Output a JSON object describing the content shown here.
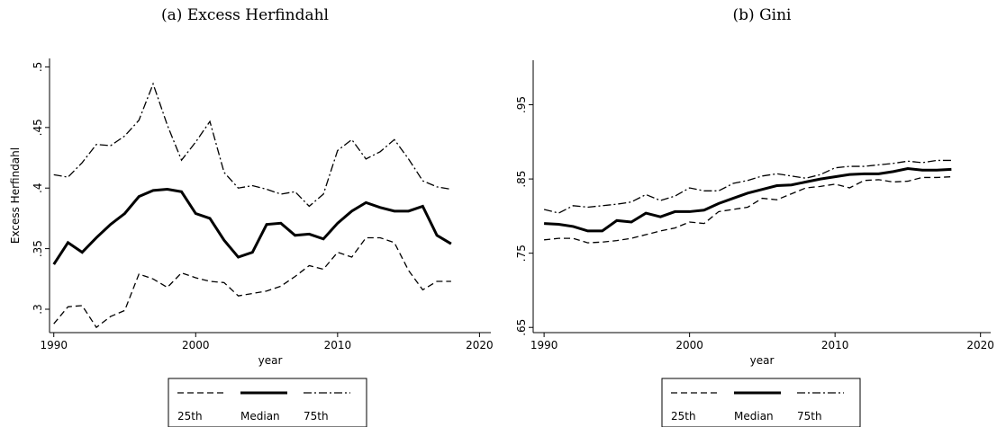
{
  "chart_data": [
    {
      "type": "line",
      "title": "(a) Excess Herfindahl",
      "x_label": "year",
      "y_label": "Excess Herfindahl",
      "x": [
        1990,
        1991,
        1992,
        1993,
        1994,
        1995,
        1996,
        1997,
        1998,
        1999,
        2000,
        2001,
        2002,
        2003,
        2004,
        2005,
        2006,
        2007,
        2008,
        2009,
        2010,
        2011,
        2012,
        2013,
        2014,
        2015,
        2016,
        2017,
        2018
      ],
      "series": [
        {
          "name": "25th",
          "color": "#000000",
          "dash": "dashed",
          "values": [
            0.288,
            0.302,
            0.303,
            0.285,
            0.294,
            0.299,
            0.329,
            0.325,
            0.318,
            0.33,
            0.326,
            0.323,
            0.322,
            0.311,
            0.313,
            0.315,
            0.319,
            0.327,
            0.336,
            0.333,
            0.347,
            0.343,
            0.359,
            0.359,
            0.355,
            0.332,
            0.316,
            0.323,
            0.323
          ]
        },
        {
          "name": "Median",
          "color": "#000000",
          "dash": "solid",
          "values": [
            0.337,
            0.355,
            0.347,
            0.359,
            0.37,
            0.379,
            0.393,
            0.398,
            0.399,
            0.397,
            0.379,
            0.375,
            0.357,
            0.343,
            0.347,
            0.37,
            0.371,
            0.361,
            0.362,
            0.358,
            0.371,
            0.381,
            0.388,
            0.384,
            0.381,
            0.381,
            0.385,
            0.361,
            0.354
          ]
        },
        {
          "name": "75th",
          "color": "#000000",
          "dash": "dashdot",
          "values": [
            0.411,
            0.409,
            0.421,
            0.436,
            0.435,
            0.443,
            0.456,
            0.486,
            0.452,
            0.423,
            0.438,
            0.455,
            0.413,
            0.4,
            0.402,
            0.399,
            0.395,
            0.397,
            0.385,
            0.395,
            0.431,
            0.44,
            0.424,
            0.43,
            0.44,
            0.424,
            0.406,
            0.401,
            0.399
          ]
        }
      ],
      "xlim": [
        1989.7,
        2020.8
      ],
      "xticks": [
        1990,
        2000,
        2010,
        2020
      ],
      "ylim": [
        0.2807,
        0.507
      ],
      "yticks": [
        {
          "value": 0.3,
          "label": ".3"
        },
        {
          "value": 0.35,
          "label": ".35"
        },
        {
          "value": 0.4,
          "label": ".4"
        },
        {
          "value": 0.45,
          "label": ".45"
        },
        {
          "value": 0.5,
          "label": ".5"
        }
      ],
      "grid": false,
      "legend": "bottom"
    },
    {
      "type": "line",
      "title": "(b) Gini",
      "x_label": "year",
      "x": [
        1990,
        1991,
        1992,
        1993,
        1994,
        1995,
        1996,
        1997,
        1998,
        1999,
        2000,
        2001,
        2002,
        2003,
        2004,
        2005,
        2006,
        2007,
        2008,
        2009,
        2010,
        2011,
        2012,
        2013,
        2014,
        2015,
        2016,
        2017,
        2018
      ],
      "series": [
        {
          "name": "25th",
          "color": "#000000",
          "dash": "dashed",
          "values": [
            0.768,
            0.77,
            0.77,
            0.764,
            0.765,
            0.767,
            0.77,
            0.775,
            0.78,
            0.784,
            0.792,
            0.79,
            0.806,
            0.809,
            0.812,
            0.824,
            0.822,
            0.83,
            0.838,
            0.84,
            0.843,
            0.838,
            0.848,
            0.849,
            0.846,
            0.847,
            0.852,
            0.852,
            0.853
          ]
        },
        {
          "name": "Median",
          "color": "#000000",
          "dash": "solid",
          "values": [
            0.79,
            0.789,
            0.786,
            0.78,
            0.78,
            0.794,
            0.792,
            0.804,
            0.799,
            0.806,
            0.806,
            0.808,
            0.817,
            0.824,
            0.831,
            0.836,
            0.841,
            0.842,
            0.846,
            0.85,
            0.853,
            0.856,
            0.857,
            0.857,
            0.86,
            0.864,
            0.862,
            0.862,
            0.863
          ]
        },
        {
          "name": "75th",
          "color": "#000000",
          "dash": "dashdot",
          "values": [
            0.809,
            0.804,
            0.814,
            0.812,
            0.814,
            0.816,
            0.819,
            0.829,
            0.821,
            0.827,
            0.838,
            0.834,
            0.834,
            0.844,
            0.848,
            0.854,
            0.857,
            0.854,
            0.851,
            0.856,
            0.865,
            0.867,
            0.867,
            0.869,
            0.871,
            0.874,
            0.872,
            0.875,
            0.875
          ]
        }
      ],
      "xlim": [
        1989.25,
        2020.7
      ],
      "xticks": [
        1990,
        2000,
        2010,
        2020
      ],
      "ylim": [
        0.643,
        1.01
      ],
      "yticks": [
        {
          "value": 0.65,
          "label": ".65"
        },
        {
          "value": 0.75,
          "label": ".75"
        },
        {
          "value": 0.85,
          "label": ".85"
        },
        {
          "value": 0.95,
          "label": ".95"
        }
      ],
      "grid": false,
      "legend": "bottom"
    }
  ]
}
